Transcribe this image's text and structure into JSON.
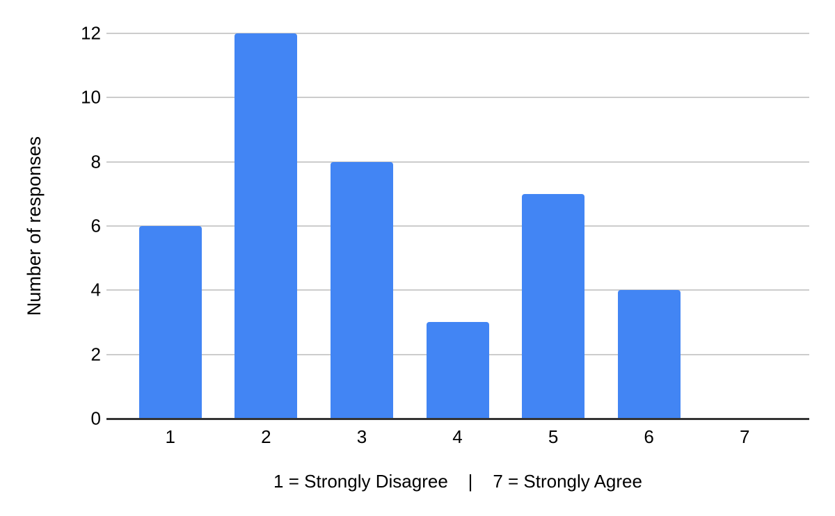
{
  "chart_data": {
    "type": "bar",
    "categories": [
      "1",
      "2",
      "3",
      "4",
      "5",
      "6",
      "7"
    ],
    "values": [
      6,
      12,
      8,
      3,
      7,
      4,
      0
    ],
    "xlabel": "1 = Strongly Disagree    |    7 = Strongly Agree",
    "ylabel": "Number of responses",
    "yticks": [
      0,
      2,
      4,
      6,
      8,
      10,
      12
    ],
    "ylim": [
      0,
      12
    ],
    "grid": true,
    "legend": false,
    "bar_color": "#4285F4",
    "gridline_color": "#cccccc",
    "axis_line_color": "#333333",
    "text_color": "#000000",
    "background_color": "#ffffff"
  }
}
